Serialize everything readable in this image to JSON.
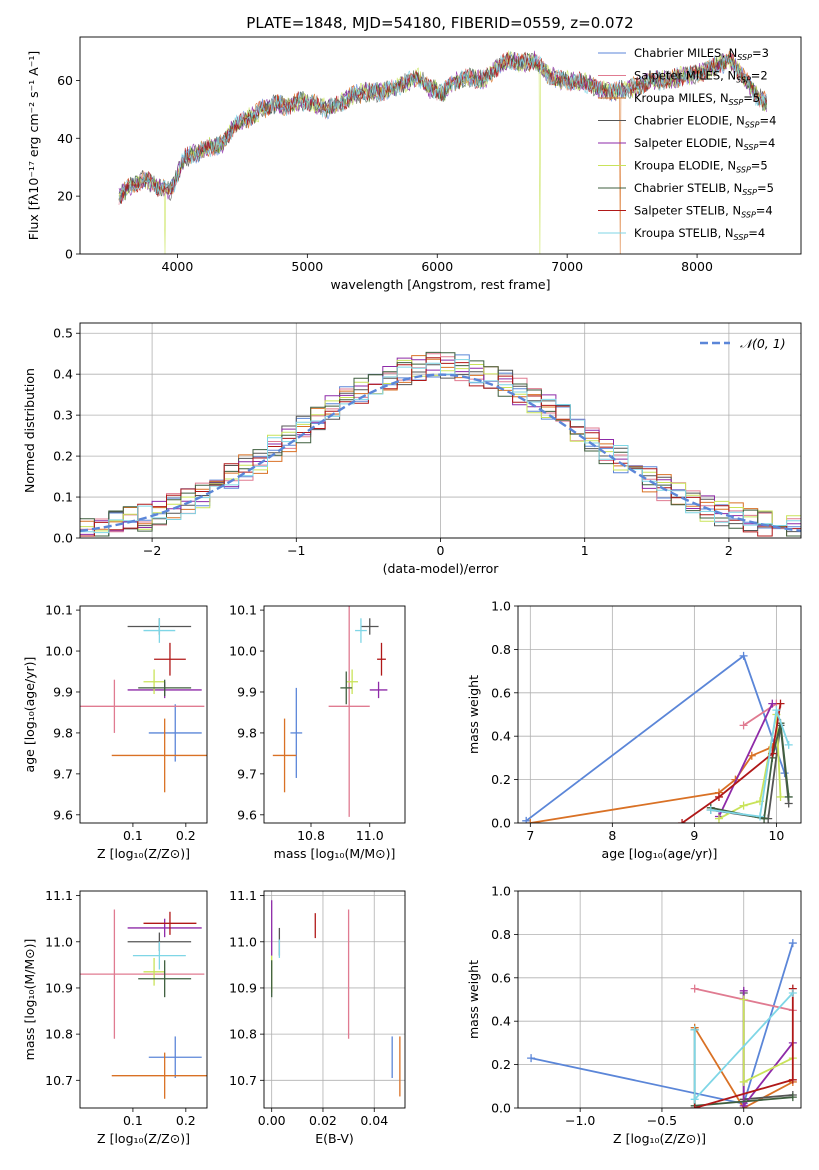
{
  "figure": {
    "title": "PLATE=1848, MJD=54180, FIBERID=0559, z=0.072"
  },
  "colors": {
    "Chabrier MILES": "#5b86d8",
    "Salpeter MILES": "#e07b91",
    "Kroupa MILES": "#d97125",
    "Chabrier ELODIE": "#555555",
    "Salpeter ELODIE": "#8e2aa8",
    "Kroupa ELODIE": "#c9e35a",
    "Chabrier STELIB": "#3f5f3f",
    "Salpeter STELIB": "#b01818",
    "Kroupa STELIB": "#7fd6e6"
  },
  "chart_data": [
    {
      "id": "spectrum",
      "type": "line",
      "title": "PLATE=1848, MJD=54180, FIBERID=0559, z=0.072",
      "xlabel": "wavelength [Angstrom, rest frame]",
      "ylabel": "Flux [fλ10⁻¹⁷ erg cm⁻² s⁻¹ A⁻¹]",
      "xlim": [
        3250,
        8800
      ],
      "ylim": [
        0,
        75
      ],
      "xticks": [
        4000,
        5000,
        6000,
        7000,
        8000
      ],
      "yticks": [
        0,
        20,
        40,
        60
      ],
      "grid": false,
      "legend_position": "top-right",
      "legend": [
        {
          "name": "Chabrier MILES",
          "label": "Chabrier MILES, N",
          "sub": "SSP",
          "post": "=3"
        },
        {
          "name": "Salpeter MILES",
          "label": "Salpeter MILES, N",
          "sub": "SSP",
          "post": "=2"
        },
        {
          "name": "Kroupa MILES",
          "label": "Kroupa MILES, N",
          "sub": "SSP",
          "post": "=5"
        },
        {
          "name": "Chabrier ELODIE",
          "label": "Chabrier ELODIE, N",
          "sub": "SSP",
          "post": "=4"
        },
        {
          "name": "Salpeter ELODIE",
          "label": "Salpeter ELODIE, N",
          "sub": "SSP",
          "post": "=4"
        },
        {
          "name": "Kroupa ELODIE",
          "label": "Kroupa ELODIE, N",
          "sub": "SSP",
          "post": "=5"
        },
        {
          "name": "Chabrier STELIB",
          "label": "Chabrier STELIB, N",
          "sub": "SSP",
          "post": "=5"
        },
        {
          "name": "Salpeter STELIB",
          "label": "Salpeter STELIB, N",
          "sub": "SSP",
          "post": "=4"
        },
        {
          "name": "Kroupa STELIB",
          "label": "Kroupa STELIB, N",
          "sub": "SSP",
          "post": "=4"
        }
      ],
      "spectrum_shape": {
        "wavelength": [
          3550,
          3650,
          3750,
          3850,
          3950,
          4050,
          4150,
          4250,
          4350,
          4450,
          4550,
          4650,
          4750,
          4850,
          4950,
          5050,
          5150,
          5250,
          5350,
          5450,
          5550,
          5650,
          5750,
          5850,
          5950,
          6050,
          6150,
          6250,
          6350,
          6450,
          6550,
          6650,
          6750,
          6850,
          6950,
          7050,
          7150,
          7250,
          7350,
          7450,
          7550,
          7650,
          7750,
          7850,
          7950,
          8050,
          8150,
          8250,
          8350,
          8450,
          8540
        ],
        "flux": [
          20,
          24,
          26,
          23,
          22,
          33,
          35,
          37,
          38,
          45,
          47,
          50,
          52,
          51,
          53,
          52,
          50,
          52,
          55,
          56,
          56,
          57,
          59,
          61,
          57,
          56,
          60,
          61,
          60,
          64,
          67,
          66,
          67,
          62,
          60,
          60,
          59,
          57,
          56,
          57,
          58,
          60,
          60,
          61,
          62,
          63,
          65,
          67,
          62,
          55,
          52
        ],
        "dropouts": [
          {
            "wavelength": 3905,
            "series": "Kroupa ELODIE"
          },
          {
            "wavelength": 6790,
            "series": "Kroupa ELODIE"
          },
          {
            "wavelength": 7410,
            "series": "Kroupa MILES"
          }
        ]
      }
    },
    {
      "id": "residuals",
      "type": "line",
      "xlabel": "(data-model)/error",
      "ylabel": "Normed distribution",
      "xlim": [
        -2.5,
        2.5
      ],
      "ylim": [
        0,
        0.525
      ],
      "xticks": [
        -2,
        -1,
        0,
        1,
        2
      ],
      "yticks": [
        0.0,
        0.1,
        0.2,
        0.3,
        0.4,
        0.5
      ],
      "grid": true,
      "legend_position": "top-right",
      "legend": [
        {
          "name": "N(0,1)",
          "label": "𝒩(0, 1)"
        }
      ],
      "bin_width": 0.1,
      "gaussian": {
        "mean": 0,
        "sigma": 1
      }
    },
    {
      "id": "age-vs-Z",
      "type": "scatter",
      "xlabel": "Z [log₁₀(Z/Z⊙)]",
      "ylabel": "age  [log₁₀(age/yr)]",
      "xlim": [
        0.0,
        0.24
      ],
      "ylim": [
        9.58,
        10.11
      ],
      "xticks": [
        0.1,
        0.2
      ],
      "yticks": [
        9.6,
        9.7,
        9.8,
        9.9,
        10.0,
        10.1
      ],
      "grid": false,
      "points": [
        {
          "series": "Chabrier MILES",
          "x": 0.18,
          "y": 9.8,
          "xerr": 0.05,
          "yerr": 0.07
        },
        {
          "series": "Salpeter MILES",
          "x": 0.065,
          "y": 9.865,
          "xerr": 0.17,
          "yerr": 0.065
        },
        {
          "series": "Kroupa MILES",
          "x": 0.16,
          "y": 9.745,
          "xerr": 0.1,
          "yerr": 0.09
        },
        {
          "series": "Chabrier ELODIE",
          "x": 0.15,
          "y": 10.06,
          "xerr": 0.06,
          "yerr": 0.02
        },
        {
          "series": "Salpeter ELODIE",
          "x": 0.16,
          "y": 9.905,
          "xerr": 0.07,
          "yerr": 0.02
        },
        {
          "series": "Kroupa ELODIE",
          "x": 0.14,
          "y": 9.925,
          "xerr": 0.02,
          "yerr": 0.03
        },
        {
          "series": "Chabrier STELIB",
          "x": 0.16,
          "y": 9.91,
          "xerr": 0.05,
          "yerr": 0.02
        },
        {
          "series": "Salpeter STELIB",
          "x": 0.17,
          "y": 9.98,
          "xerr": 0.03,
          "yerr": 0.04
        },
        {
          "series": "Kroupa STELIB",
          "x": 0.15,
          "y": 10.05,
          "xerr": 0.03,
          "yerr": 0.03
        }
      ]
    },
    {
      "id": "age-vs-mass",
      "type": "scatter",
      "xlabel": "mass [log₁₀(M/M⊙)]",
      "ylabel": "",
      "xlim": [
        10.64,
        11.12
      ],
      "ylim": [
        9.58,
        10.11
      ],
      "xticks": [
        10.8,
        11.0
      ],
      "yticks": [
        9.6,
        9.7,
        9.8,
        9.9,
        10.0,
        10.1
      ],
      "grid": false,
      "points": [
        {
          "series": "Chabrier MILES",
          "x": 10.75,
          "y": 9.8,
          "xerr": 0.02,
          "yerr": 0.11
        },
        {
          "series": "Salpeter MILES",
          "x": 10.93,
          "y": 9.865,
          "xerr": 0.07,
          "yerr": 0.27
        },
        {
          "series": "Kroupa MILES",
          "x": 10.71,
          "y": 9.745,
          "xerr": 0.04,
          "yerr": 0.09
        },
        {
          "series": "Chabrier ELODIE",
          "x": 11.0,
          "y": 10.06,
          "xerr": 0.03,
          "yerr": 0.02
        },
        {
          "series": "Salpeter ELODIE",
          "x": 11.03,
          "y": 9.905,
          "xerr": 0.03,
          "yerr": 0.02
        },
        {
          "series": "Kroupa ELODIE",
          "x": 10.94,
          "y": 9.925,
          "xerr": 0.02,
          "yerr": 0.03
        },
        {
          "series": "Chabrier STELIB",
          "x": 10.92,
          "y": 9.91,
          "xerr": 0.02,
          "yerr": 0.04
        },
        {
          "series": "Salpeter STELIB",
          "x": 11.04,
          "y": 9.98,
          "xerr": 0.015,
          "yerr": 0.04
        },
        {
          "series": "Kroupa STELIB",
          "x": 10.97,
          "y": 10.05,
          "xerr": 0.02,
          "yerr": 0.03
        }
      ]
    },
    {
      "id": "mass-weight-vs-age",
      "type": "line",
      "xlabel": "age  [log₁₀(age/yr)]",
      "ylabel": "mass weight",
      "xlim": [
        6.85,
        10.3
      ],
      "ylim": [
        0,
        1
      ],
      "xticks": [
        7,
        8,
        9,
        10
      ],
      "yticks": [
        0.0,
        0.2,
        0.4,
        0.6,
        0.8,
        1.0
      ],
      "grid": true,
      "series": [
        {
          "name": "Chabrier MILES",
          "points": [
            [
              6.95,
              0.01
            ],
            [
              9.6,
              0.77
            ],
            [
              10.1,
              0.23
            ]
          ]
        },
        {
          "name": "Salpeter MILES",
          "points": [
            [
              9.6,
              0.45
            ],
            [
              10.0,
              0.55
            ]
          ]
        },
        {
          "name": "Kroupa MILES",
          "points": [
            [
              7.0,
              0.0
            ],
            [
              9.3,
              0.14
            ],
            [
              9.5,
              0.2
            ],
            [
              9.7,
              0.31
            ],
            [
              9.95,
              0.35
            ]
          ]
        },
        {
          "name": "Chabrier ELODIE",
          "points": [
            [
              9.2,
              0.06
            ],
            [
              9.9,
              0.02
            ],
            [
              10.05,
              0.45
            ],
            [
              10.15,
              0.09
            ]
          ]
        },
        {
          "name": "Salpeter ELODIE",
          "points": [
            [
              9.3,
              0.03
            ],
            [
              9.95,
              0.55
            ]
          ]
        },
        {
          "name": "Kroupa ELODIE",
          "points": [
            [
              9.3,
              0.02
            ],
            [
              9.6,
              0.08
            ],
            [
              9.8,
              0.1
            ],
            [
              10.0,
              0.5
            ],
            [
              10.05,
              0.12
            ]
          ]
        },
        {
          "name": "Chabrier STELIB",
          "points": [
            [
              9.2,
              0.07
            ],
            [
              9.85,
              0.02
            ],
            [
              9.95,
              0.3
            ],
            [
              10.05,
              0.46
            ],
            [
              10.15,
              0.12
            ]
          ]
        },
        {
          "name": "Salpeter STELIB",
          "points": [
            [
              8.85,
              0.0
            ],
            [
              9.3,
              0.12
            ],
            [
              9.95,
              0.32
            ],
            [
              10.05,
              0.55
            ]
          ]
        },
        {
          "name": "Kroupa STELIB",
          "points": [
            [
              9.2,
              0.06
            ],
            [
              9.8,
              0.03
            ],
            [
              10.0,
              0.52
            ],
            [
              10.15,
              0.36
            ]
          ]
        }
      ]
    },
    {
      "id": "mass-vs-Z",
      "type": "scatter",
      "xlabel": "Z [log₁₀(Z/Z⊙)]",
      "ylabel": "mass [log₁₀(M/M⊙)]",
      "xlim": [
        0.0,
        0.24
      ],
      "ylim": [
        10.64,
        11.11
      ],
      "xticks": [
        0.1,
        0.2
      ],
      "yticks": [
        10.7,
        10.8,
        10.9,
        11.0,
        11.1
      ],
      "grid": false,
      "points": [
        {
          "series": "Chabrier MILES",
          "x": 0.18,
          "y": 10.75,
          "xerr": 0.05,
          "yerr": 0.045
        },
        {
          "series": "Salpeter MILES",
          "x": 0.065,
          "y": 10.93,
          "xerr": 0.17,
          "yerr": 0.14
        },
        {
          "series": "Kroupa MILES",
          "x": 0.16,
          "y": 10.71,
          "xerr": 0.1,
          "yerr": 0.05
        },
        {
          "series": "Chabrier ELODIE",
          "x": 0.15,
          "y": 11.0,
          "xerr": 0.06,
          "yerr": 0.02
        },
        {
          "series": "Salpeter ELODIE",
          "x": 0.16,
          "y": 11.03,
          "xerr": 0.07,
          "yerr": 0.02
        },
        {
          "series": "Kroupa ELODIE",
          "x": 0.14,
          "y": 10.935,
          "xerr": 0.02,
          "yerr": 0.03
        },
        {
          "series": "Chabrier STELIB",
          "x": 0.16,
          "y": 10.92,
          "xerr": 0.05,
          "yerr": 0.04
        },
        {
          "series": "Salpeter STELIB",
          "x": 0.17,
          "y": 11.04,
          "xerr": 0.05,
          "yerr": 0.025
        },
        {
          "series": "Kroupa STELIB",
          "x": 0.15,
          "y": 10.97,
          "xerr": 0.05,
          "yerr": 0.03
        }
      ]
    },
    {
      "id": "mass-vs-ebv",
      "type": "scatter",
      "xlabel": "E(B-V)",
      "ylabel": "",
      "xlim": [
        -0.003,
        0.052
      ],
      "ylim": [
        10.64,
        11.11
      ],
      "xticks": [
        0.0,
        0.02,
        0.04
      ],
      "xticklabels": [
        "0.00",
        "0.02",
        "0.04"
      ],
      "yticks": [
        10.7,
        10.8,
        10.9,
        11.0,
        11.1
      ],
      "grid": true,
      "points": [
        {
          "series": "Chabrier MILES",
          "x": 0.047,
          "y": 10.75,
          "xerr": 0,
          "yerr": 0.045
        },
        {
          "series": "Salpeter MILES",
          "x": 0.03,
          "y": 10.93,
          "xerr": 0,
          "yerr": 0.14
        },
        {
          "series": "Kroupa MILES",
          "x": 0.05,
          "y": 10.73,
          "xerr": 0,
          "yerr": 0.065
        },
        {
          "series": "Chabrier ELODIE",
          "x": 0.003,
          "y": 11.0,
          "xerr": 0,
          "yerr": 0.03
        },
        {
          "series": "Salpeter ELODIE",
          "x": 0.0,
          "y": 11.03,
          "xerr": 0,
          "yerr": 0.06
        },
        {
          "series": "Kroupa ELODIE",
          "x": 0.0,
          "y": 10.93,
          "xerr": 0,
          "yerr": 0.04
        },
        {
          "series": "Chabrier STELIB",
          "x": 0.0,
          "y": 10.92,
          "xerr": 0,
          "yerr": 0.04
        },
        {
          "series": "Salpeter STELIB",
          "x": 0.017,
          "y": 11.035,
          "xerr": 0,
          "yerr": 0.027
        },
        {
          "series": "Kroupa STELIB",
          "x": 0.003,
          "y": 10.985,
          "xerr": 0,
          "yerr": 0.02
        }
      ]
    },
    {
      "id": "mass-weight-vs-Z",
      "type": "line",
      "xlabel": "Z [log₁₀(Z/Z⊙)]",
      "ylabel": "mass weight",
      "xlim": [
        -1.38,
        0.35
      ],
      "ylim": [
        0,
        1
      ],
      "xticks": [
        -1.0,
        -0.5,
        0.0
      ],
      "xticklabels": [
        "−1.0",
        "−0.5",
        "0.0"
      ],
      "yticks": [
        0.0,
        0.2,
        0.4,
        0.6,
        0.8,
        1.0
      ],
      "grid": true,
      "series": [
        {
          "name": "Chabrier MILES",
          "points": [
            [
              -1.3,
              0.23
            ],
            [
              0.0,
              0.02
            ],
            [
              0.3,
              0.76
            ]
          ]
        },
        {
          "name": "Salpeter MILES",
          "points": [
            [
              -0.3,
              0.55
            ],
            [
              0.3,
              0.45
            ]
          ]
        },
        {
          "name": "Kroupa MILES",
          "points": [
            [
              -0.3,
              0.37
            ],
            [
              0.0,
              0.0
            ],
            [
              0.3,
              0.12
            ]
          ]
        },
        {
          "name": "Chabrier ELODIE",
          "points": [
            [
              0.0,
              0.53
            ],
            [
              0.0,
              0.04
            ],
            [
              0.3,
              0.06
            ]
          ]
        },
        {
          "name": "Salpeter ELODIE",
          "points": [
            [
              0.0,
              0.54
            ],
            [
              0.0,
              0.01
            ],
            [
              0.3,
              0.3
            ]
          ]
        },
        {
          "name": "Kroupa ELODIE",
          "points": [
            [
              0.0,
              0.5
            ],
            [
              0.0,
              0.12
            ],
            [
              0.3,
              0.23
            ]
          ]
        },
        {
          "name": "Chabrier STELIB",
          "points": [
            [
              -0.3,
              0.36
            ],
            [
              -0.3,
              0.01
            ],
            [
              0.3,
              0.05
            ]
          ]
        },
        {
          "name": "Salpeter STELIB",
          "points": [
            [
              -0.3,
              0.0
            ],
            [
              0.3,
              0.13
            ],
            [
              0.3,
              0.55
            ]
          ]
        },
        {
          "name": "Kroupa STELIB",
          "points": [
            [
              -0.3,
              0.36
            ],
            [
              -0.3,
              0.04
            ],
            [
              0.3,
              0.53
            ]
          ]
        }
      ]
    }
  ]
}
